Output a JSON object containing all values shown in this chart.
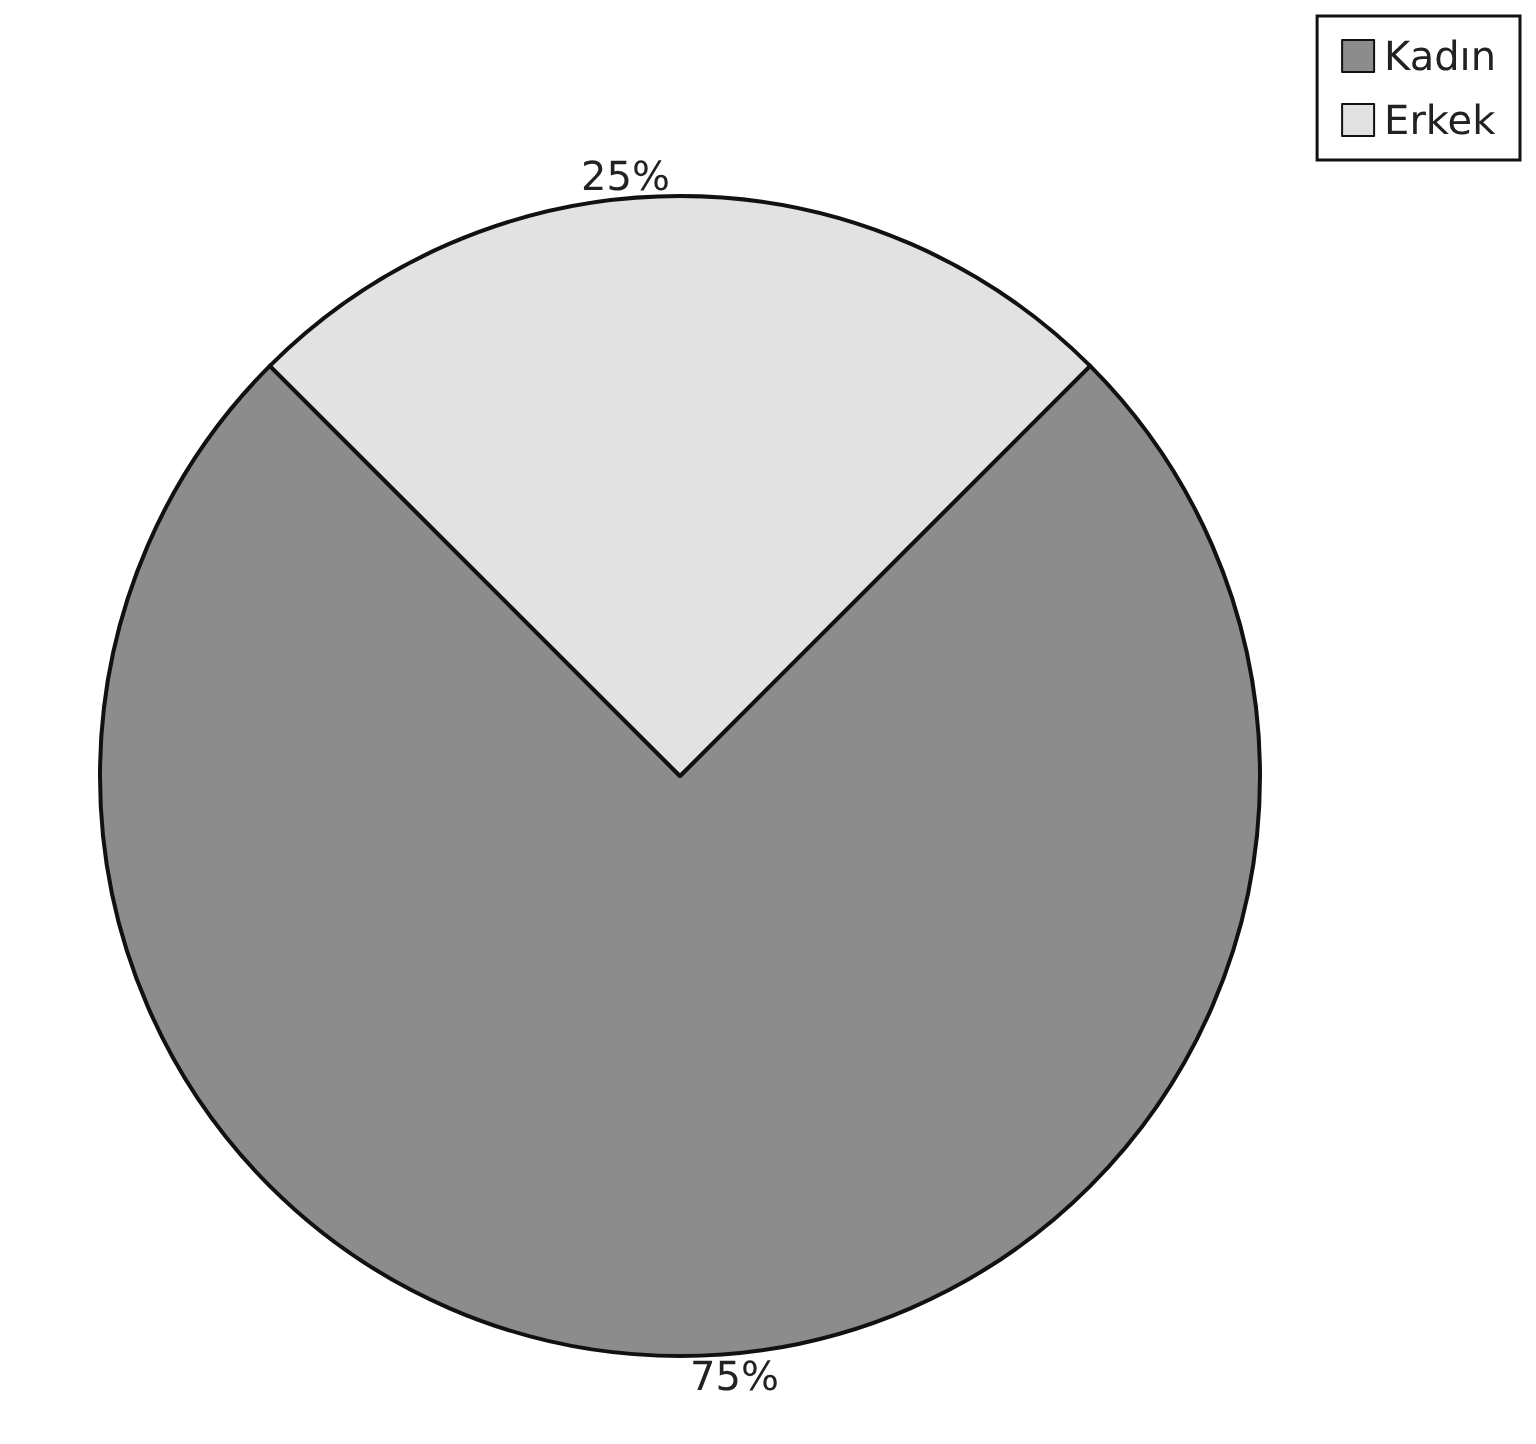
{
  "chart_data": {
    "type": "pie",
    "categories": [
      "Kadın",
      "Erkek"
    ],
    "values": [
      75,
      25
    ],
    "colors": [
      "#8c8c8c",
      "#e2e2e2"
    ],
    "value_labels": [
      "75%",
      "25%"
    ],
    "legend": "top right"
  }
}
